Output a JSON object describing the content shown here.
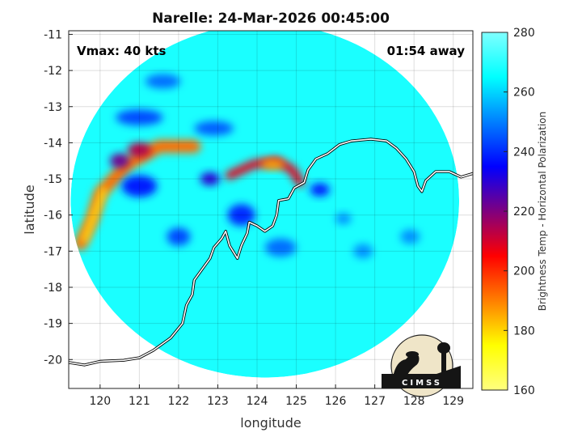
{
  "chart_data": {
    "type": "heatmap",
    "title": "Narelle: 24-Mar-2026 00:45:00",
    "xlabel": "longitude",
    "ylabel": "latitude",
    "xlim": [
      119.2,
      129.5
    ],
    "ylim": [
      -20.8,
      -10.9
    ],
    "x_ticks": [
      120,
      121,
      122,
      123,
      124,
      125,
      126,
      127,
      128,
      129
    ],
    "y_ticks": [
      -11,
      -12,
      -13,
      -14,
      -15,
      -16,
      -17,
      -18,
      -19,
      -20
    ],
    "grid": true,
    "annotations": {
      "vmax": "Vmax: 40 kts",
      "time_offset": "01:54 away"
    },
    "colorbar": {
      "label": "Brightness Temp - Horizontal Polarization",
      "range": [
        160,
        280
      ],
      "ticks": [
        160,
        180,
        200,
        220,
        240,
        260,
        280
      ],
      "colormap": "jet"
    },
    "background_value": 268,
    "swath": {
      "center": [
        124.2,
        -15.6
      ],
      "radius_x": 4.95,
      "radius_y": 4.9
    },
    "features": [
      {
        "type": "band",
        "path": [
          [
            119.5,
            -16.8
          ],
          [
            119.8,
            -16.1
          ],
          [
            120.0,
            -15.4
          ],
          [
            120.7,
            -14.6
          ],
          [
            121.5,
            -14.1
          ],
          [
            122.4,
            -14.1
          ]
        ],
        "width": 0.33,
        "value": 192
      },
      {
        "type": "band",
        "path": [
          [
            119.6,
            -16.7
          ],
          [
            119.85,
            -16.0
          ],
          [
            120.1,
            -15.3
          ]
        ],
        "width": 0.13,
        "value": 172
      },
      {
        "type": "blob",
        "center": [
          120.5,
          -14.5
        ],
        "r": [
          0.25,
          0.2
        ],
        "value": 222
      },
      {
        "type": "blob",
        "center": [
          121.0,
          -14.2
        ],
        "r": [
          0.3,
          0.2
        ],
        "value": 214
      },
      {
        "type": "band",
        "path": [
          [
            123.3,
            -14.9
          ],
          [
            123.9,
            -14.6
          ],
          [
            124.5,
            -14.5
          ],
          [
            124.9,
            -14.75
          ],
          [
            125.1,
            -15.1
          ]
        ],
        "width": 0.22,
        "value": 208
      },
      {
        "type": "blob",
        "center": [
          124.4,
          -14.6
        ],
        "r": [
          0.3,
          0.14
        ],
        "value": 186
      },
      {
        "type": "blob",
        "center": [
          121.0,
          -15.2
        ],
        "r": [
          0.45,
          0.3
        ],
        "value": 238
      },
      {
        "type": "blob",
        "center": [
          122.8,
          -15.0
        ],
        "r": [
          0.25,
          0.18
        ],
        "value": 230
      },
      {
        "type": "blob",
        "center": [
          123.6,
          -16.0
        ],
        "r": [
          0.35,
          0.3
        ],
        "value": 240
      },
      {
        "type": "blob",
        "center": [
          122.0,
          -16.6
        ],
        "r": [
          0.3,
          0.25
        ],
        "value": 244
      },
      {
        "type": "blob",
        "center": [
          121.0,
          -13.3
        ],
        "r": [
          0.6,
          0.22
        ],
        "value": 244
      },
      {
        "type": "blob",
        "center": [
          122.9,
          -13.6
        ],
        "r": [
          0.5,
          0.2
        ],
        "value": 246
      },
      {
        "type": "blob",
        "center": [
          121.6,
          -12.3
        ],
        "r": [
          0.45,
          0.2
        ],
        "value": 248
      },
      {
        "type": "blob",
        "center": [
          124.6,
          -16.9
        ],
        "r": [
          0.4,
          0.25
        ],
        "value": 248
      },
      {
        "type": "blob",
        "center": [
          125.6,
          -15.3
        ],
        "r": [
          0.25,
          0.18
        ],
        "value": 238
      },
      {
        "type": "blob",
        "center": [
          126.7,
          -17.0
        ],
        "r": [
          0.25,
          0.2
        ],
        "value": 252
      },
      {
        "type": "blob",
        "center": [
          127.9,
          -16.6
        ],
        "r": [
          0.25,
          0.2
        ],
        "value": 252
      },
      {
        "type": "blob",
        "center": [
          126.2,
          -16.1
        ],
        "r": [
          0.2,
          0.16
        ],
        "value": 252
      }
    ],
    "coastline": [
      [
        119.2,
        -20.08
      ],
      [
        119.6,
        -20.15
      ],
      [
        120.0,
        -20.05
      ],
      [
        120.6,
        -20.02
      ],
      [
        121.0,
        -19.95
      ],
      [
        121.35,
        -19.75
      ],
      [
        121.8,
        -19.4
      ],
      [
        122.1,
        -19.0
      ],
      [
        122.2,
        -18.5
      ],
      [
        122.35,
        -18.2
      ],
      [
        122.4,
        -17.8
      ],
      [
        122.6,
        -17.5
      ],
      [
        122.8,
        -17.2
      ],
      [
        122.9,
        -16.9
      ],
      [
        123.1,
        -16.65
      ],
      [
        123.2,
        -16.45
      ],
      [
        123.3,
        -16.85
      ],
      [
        123.5,
        -17.2
      ],
      [
        123.6,
        -16.85
      ],
      [
        123.75,
        -16.5
      ],
      [
        123.8,
        -16.2
      ],
      [
        124.0,
        -16.3
      ],
      [
        124.2,
        -16.45
      ],
      [
        124.4,
        -16.3
      ],
      [
        124.5,
        -16.0
      ],
      [
        124.55,
        -15.6
      ],
      [
        124.8,
        -15.55
      ],
      [
        124.95,
        -15.25
      ],
      [
        125.2,
        -15.1
      ],
      [
        125.3,
        -14.75
      ],
      [
        125.5,
        -14.45
      ],
      [
        125.8,
        -14.3
      ],
      [
        126.1,
        -14.05
      ],
      [
        126.4,
        -13.95
      ],
      [
        126.9,
        -13.9
      ],
      [
        127.3,
        -13.95
      ],
      [
        127.55,
        -14.15
      ],
      [
        127.8,
        -14.45
      ],
      [
        128.0,
        -14.8
      ],
      [
        128.1,
        -15.2
      ],
      [
        128.2,
        -15.35
      ],
      [
        128.3,
        -15.05
      ],
      [
        128.55,
        -14.8
      ],
      [
        128.9,
        -14.8
      ],
      [
        129.2,
        -14.95
      ],
      [
        129.5,
        -14.85
      ]
    ]
  },
  "logo": {
    "text": "CIMSS"
  }
}
